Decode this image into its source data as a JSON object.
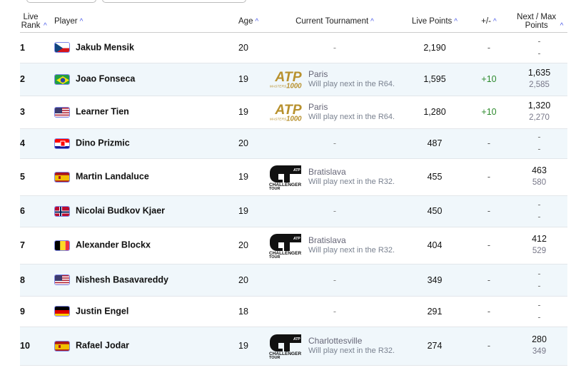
{
  "headers": {
    "rank": "Live Rank",
    "player": "Player",
    "age": "Age",
    "tournament": "Current Tournament",
    "points": "Live Points",
    "diff": "+/-",
    "nextmax": "Next / Max Points",
    "sort_icon": "chevron-up-icon"
  },
  "rows": [
    {
      "rank": "1",
      "flag": "czech-republic",
      "name": "Jakub Mensik",
      "age": "20",
      "tournament": "-",
      "logo": "",
      "sub": "",
      "points": "2,190",
      "diff": "-",
      "next": "-",
      "max": "-"
    },
    {
      "rank": "2",
      "flag": "brazil",
      "name": "Joao Fonseca",
      "age": "19",
      "tournament": "Paris",
      "logo": "atp-masters-1000",
      "sub": "Will play next in the R64.",
      "points": "1,595",
      "diff": "+10",
      "next": "1,635",
      "max": "2,585"
    },
    {
      "rank": "3",
      "flag": "usa",
      "name": "Learner Tien",
      "age": "19",
      "tournament": "Paris",
      "logo": "atp-masters-1000",
      "sub": "Will play next in the R64.",
      "points": "1,280",
      "diff": "+10",
      "next": "1,320",
      "max": "2,270"
    },
    {
      "rank": "4",
      "flag": "croatia",
      "name": "Dino Prizmic",
      "age": "20",
      "tournament": "-",
      "logo": "",
      "sub": "",
      "points": "487",
      "diff": "-",
      "next": "-",
      "max": "-"
    },
    {
      "rank": "5",
      "flag": "spain",
      "name": "Martin Landaluce",
      "age": "19",
      "tournament": "Bratislava",
      "logo": "atp-challenger-tour",
      "sub": "Will play next in the R32.",
      "points": "455",
      "diff": "-",
      "next": "463",
      "max": "580"
    },
    {
      "rank": "6",
      "flag": "norway",
      "name": "Nicolai Budkov Kjaer",
      "age": "19",
      "tournament": "-",
      "logo": "",
      "sub": "",
      "points": "450",
      "diff": "-",
      "next": "-",
      "max": "-"
    },
    {
      "rank": "7",
      "flag": "belgium",
      "name": "Alexander Blockx",
      "age": "20",
      "tournament": "Bratislava",
      "logo": "atp-challenger-tour",
      "sub": "Will play next in the R32.",
      "points": "404",
      "diff": "-",
      "next": "412",
      "max": "529"
    },
    {
      "rank": "8",
      "flag": "usa",
      "name": "Nishesh Basavareddy",
      "age": "20",
      "tournament": "-",
      "logo": "",
      "sub": "",
      "points": "349",
      "diff": "-",
      "next": "-",
      "max": "-"
    },
    {
      "rank": "9",
      "flag": "germany",
      "name": "Justin Engel",
      "age": "18",
      "tournament": "-",
      "logo": "",
      "sub": "",
      "points": "291",
      "diff": "-",
      "next": "-",
      "max": "-"
    },
    {
      "rank": "10",
      "flag": "spain",
      "name": "Rafael Jodar",
      "age": "19",
      "tournament": "Charlottesville",
      "logo": "atp-challenger-tour",
      "sub": "Will play next in the R32.",
      "points": "274",
      "diff": "-",
      "next": "280",
      "max": "349"
    }
  ],
  "logo_text": {
    "atp": "ATP",
    "masters": "MASTERS",
    "thousand": "1000",
    "challenger": "CHALLENGER",
    "tour": "TOUR"
  },
  "colors": {
    "accent": "#4a5ae8",
    "positive": "#2d8a2d",
    "row_alt": "#f0f7fb"
  }
}
